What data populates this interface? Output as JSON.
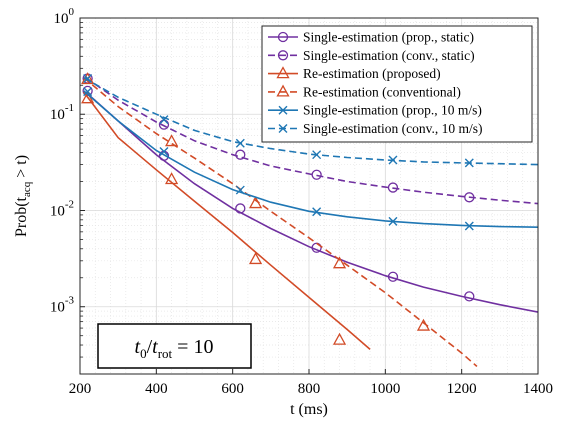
{
  "chart_data": {
    "type": "line",
    "title": "",
    "xlabel": "t (ms)",
    "ylabel": "Prob(t_acq > t)",
    "ylabel_parts": {
      "prefix": "Prob(t",
      "sub": "acq",
      "suffix": " > t)"
    },
    "xlim": [
      200,
      1400
    ],
    "ylim": [
      0.0002,
      1
    ],
    "yscale": "log",
    "grid": true,
    "minor_grid": true,
    "legend_position": "top-right",
    "x_ticks": [
      "200",
      "400",
      "600",
      "800",
      "1000",
      "1200",
      "1400"
    ],
    "x_tick_values": [
      200,
      400,
      600,
      800,
      1000,
      1200,
      1400
    ],
    "y_ticks": [
      {
        "value": 1,
        "base": "10",
        "exp": "0"
      },
      {
        "value": 0.1,
        "base": "10",
        "exp": "-1"
      },
      {
        "value": 0.01,
        "base": "10",
        "exp": "-2"
      },
      {
        "value": 0.001,
        "base": "10",
        "exp": "-3"
      }
    ],
    "annotation": {
      "num": "t",
      "num_sub": "0",
      "sep": "/",
      "den": "t",
      "den_sub": "rot",
      "rel": " = 10"
    },
    "series": [
      {
        "name": "Single-estimation (prop., static)",
        "color": "#7030a0",
        "dash": "solid",
        "marker": "circle",
        "x": [
          215,
          300,
          400,
          500,
          600,
          700,
          800,
          900,
          1000,
          1100,
          1200,
          1300,
          1400
        ],
        "y": [
          0.17,
          0.085,
          0.038,
          0.019,
          0.0105,
          0.0065,
          0.0042,
          0.0029,
          0.0021,
          0.0016,
          0.00128,
          0.00105,
          0.00088
        ],
        "marker_x": [
          220,
          420,
          620,
          820,
          1020,
          1220
        ],
        "marker_y": [
          0.175,
          0.037,
          0.0105,
          0.0041,
          0.00205,
          0.00128
        ]
      },
      {
        "name": "Single-estimation (conv., static)",
        "color": "#7030a0",
        "dash": "dashed",
        "marker": "circle",
        "x": [
          215,
          300,
          400,
          500,
          600,
          700,
          800,
          900,
          1000,
          1100,
          1200,
          1300,
          1400
        ],
        "y": [
          0.24,
          0.14,
          0.083,
          0.053,
          0.038,
          0.029,
          0.024,
          0.02,
          0.0175,
          0.0155,
          0.014,
          0.0128,
          0.0118
        ],
        "marker_x": [
          220,
          420,
          620,
          820,
          1020,
          1220
        ],
        "marker_y": [
          0.235,
          0.078,
          0.038,
          0.0235,
          0.0173,
          0.0137
        ]
      },
      {
        "name": "Re-estimation (proposed)",
        "color": "#d24b27",
        "dash": "solid",
        "marker": "triangle",
        "x": [
          210,
          300,
          400,
          500,
          600,
          700,
          800,
          900,
          960
        ],
        "y": [
          0.17,
          0.057,
          0.0265,
          0.0125,
          0.0059,
          0.0027,
          0.00125,
          0.00058,
          0.00036
        ],
        "marker_x": [
          220,
          440,
          660,
          880
        ],
        "marker_y": [
          0.145,
          0.021,
          0.0031,
          0.00045
        ]
      },
      {
        "name": "Re-estimation (conventional)",
        "color": "#d24b27",
        "dash": "dashed",
        "marker": "triangle",
        "x": [
          210,
          300,
          400,
          500,
          600,
          700,
          800,
          900,
          1000,
          1100,
          1200,
          1240
        ],
        "y": [
          0.24,
          0.12,
          0.063,
          0.035,
          0.019,
          0.0098,
          0.0052,
          0.0027,
          0.0014,
          0.00068,
          0.00033,
          0.00024
        ],
        "marker_x": [
          220,
          440,
          660,
          880,
          1100
        ],
        "marker_y": [
          0.23,
          0.052,
          0.0118,
          0.0028,
          0.00063
        ]
      },
      {
        "name": "Single-estimation (prop., 10 m/s)",
        "color": "#1f77b4",
        "dash": "solid",
        "marker": "x",
        "x": [
          210,
          300,
          400,
          500,
          600,
          700,
          800,
          900,
          1000,
          1100,
          1200,
          1300,
          1400
        ],
        "y": [
          0.175,
          0.085,
          0.042,
          0.025,
          0.0165,
          0.0122,
          0.0098,
          0.0086,
          0.0078,
          0.0073,
          0.007,
          0.0068,
          0.0067
        ],
        "marker_x": [
          220,
          420,
          620,
          820,
          1020,
          1220
        ],
        "marker_y": [
          0.172,
          0.041,
          0.0163,
          0.0097,
          0.0077,
          0.0069
        ]
      },
      {
        "name": "Single-estimation (conv., 10 m/s)",
        "color": "#1f77b4",
        "dash": "dashed",
        "marker": "x",
        "x": [
          210,
          300,
          400,
          500,
          600,
          700,
          800,
          900,
          1000,
          1100,
          1200,
          1300,
          1400
        ],
        "y": [
          0.24,
          0.15,
          0.1,
          0.068,
          0.052,
          0.044,
          0.0385,
          0.0355,
          0.0335,
          0.032,
          0.0312,
          0.0306,
          0.03
        ],
        "marker_x": [
          220,
          420,
          620,
          820,
          1020,
          1220
        ],
        "marker_y": [
          0.235,
          0.088,
          0.05,
          0.038,
          0.0335,
          0.0312
        ]
      }
    ]
  }
}
